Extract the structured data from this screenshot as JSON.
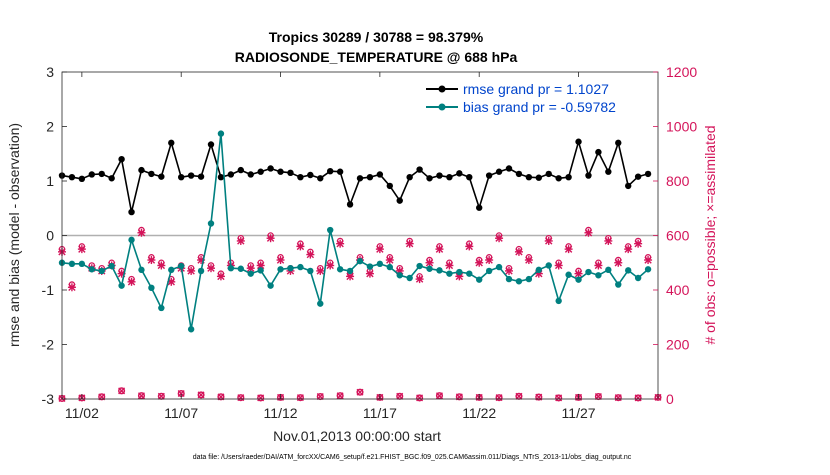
{
  "chart_data": {
    "type": "line",
    "title": "Tropics 30289 / 30788 = 98.379%",
    "subtitle": "RADIOSONDE_TEMPERATURE @ 688 hPa",
    "xlabel": "Nov.01,2013 00:00:00 start",
    "ylabel": "rmse and bias (model - observation)",
    "y2label": "# of obs: o=possible; ×=assimilated",
    "footer": "data file: /Users/raeder/DAI/ATM_forcXX/CAM6_setup/f.e21.FHIST_BGC.f09_025.CAM6assim.011/Diags_NTrS_2013-11/obs_diag_output.nc",
    "ylim": [
      -3,
      3
    ],
    "y2lim": [
      0,
      1200
    ],
    "xlim": [
      1,
      31
    ],
    "x_ticks": [
      2,
      7,
      12,
      17,
      22,
      27
    ],
    "x_tick_labels": [
      "11/02",
      "11/07",
      "11/12",
      "11/17",
      "11/22",
      "11/27"
    ],
    "y_ticks": [
      -3,
      -2,
      -1,
      0,
      1,
      2,
      3
    ],
    "y_tick_labels": [
      "-3",
      "-2",
      "-1",
      "0",
      "1",
      "2",
      "3"
    ],
    "y2_ticks": [
      0,
      200,
      400,
      600,
      800,
      1000,
      1200
    ],
    "y2_tick_labels": [
      "0",
      "200",
      "400",
      "600",
      "800",
      "1000",
      "1200"
    ],
    "legend_position": "top-right",
    "colors": {
      "rmse": "#000000",
      "bias": "#008080",
      "obs": "#d4145a",
      "legend_text": "#0044cc",
      "zero_line": "#b0b0b0"
    },
    "x": [
      1.0,
      1.5,
      2.0,
      2.5,
      3.0,
      3.5,
      4.0,
      4.5,
      5.0,
      5.5,
      6.0,
      6.5,
      7.0,
      7.5,
      8.0,
      8.5,
      9.0,
      9.5,
      10.0,
      10.5,
      11.0,
      11.5,
      12.0,
      12.5,
      13.0,
      13.5,
      14.0,
      14.5,
      15.0,
      15.5,
      16.0,
      16.5,
      17.0,
      17.5,
      18.0,
      18.5,
      19.0,
      19.5,
      20.0,
      20.5,
      21.0,
      21.5,
      22.0,
      22.5,
      23.0,
      23.5,
      24.0,
      24.5,
      25.0,
      25.5,
      26.0,
      26.5,
      27.0,
      27.5,
      28.0,
      28.5,
      29.0,
      29.5,
      30.0,
      30.5
    ],
    "series": [
      {
        "name": "rmse grand pr = 1.1027",
        "legend_label": "rmse grand pr = 1.1027",
        "values": [
          1.1,
          1.07,
          1.04,
          1.12,
          1.13,
          1.05,
          1.4,
          0.43,
          1.2,
          1.13,
          1.08,
          1.7,
          1.07,
          1.1,
          1.08,
          1.67,
          1.07,
          1.12,
          1.2,
          1.12,
          1.17,
          1.23,
          1.17,
          1.15,
          1.07,
          1.11,
          1.05,
          1.18,
          1.17,
          0.57,
          1.05,
          1.07,
          1.12,
          0.91,
          0.64,
          1.07,
          1.21,
          1.05,
          1.1,
          1.07,
          1.14,
          1.07,
          0.51,
          1.1,
          1.17,
          1.23,
          1.13,
          1.07,
          1.06,
          1.13,
          1.05,
          1.07,
          1.72,
          1.1,
          1.53,
          1.17,
          1.7,
          0.91,
          1.08,
          1.13
        ]
      },
      {
        "name": "bias grand pr = -0.59782",
        "legend_label": "bias grand pr = -0.59782",
        "values": [
          -0.5,
          -0.52,
          -0.52,
          -0.62,
          -0.65,
          -0.56,
          -0.92,
          -0.08,
          -0.63,
          -0.96,
          -1.33,
          -0.63,
          -0.56,
          -1.72,
          -0.65,
          0.22,
          1.87,
          -0.6,
          -0.61,
          -0.7,
          -0.64,
          -0.92,
          -0.62,
          -0.6,
          -0.58,
          -0.65,
          -1.25,
          0.1,
          -0.62,
          -0.65,
          -0.47,
          -0.57,
          -0.52,
          -0.58,
          -0.73,
          -0.78,
          -0.56,
          -0.61,
          -0.64,
          -0.7,
          -0.67,
          -0.7,
          -0.81,
          -0.65,
          -0.58,
          -0.8,
          -0.84,
          -0.8,
          -0.63,
          -0.55,
          -1.2,
          -0.72,
          -0.81,
          -0.67,
          -0.73,
          -0.63,
          -0.9,
          -0.64,
          -0.78,
          -0.62
        ]
      }
    ],
    "obs_possible": [
      550,
      420,
      560,
      490,
      480,
      500,
      470,
      440,
      620,
      520,
      500,
      440,
      490,
      480,
      520,
      490,
      460,
      500,
      590,
      490,
      500,
      600,
      520,
      480,
      570,
      540,
      480,
      500,
      580,
      460,
      520,
      470,
      560,
      520,
      480,
      580,
      450,
      510,
      560,
      500,
      460,
      570,
      510,
      520,
      600,
      480,
      550,
      520,
      470,
      590,
      500,
      560,
      470,
      620,
      500,
      590,
      510,
      560,
      580,
      520
    ],
    "obs_assimilated": [
      540,
      410,
      550,
      480,
      470,
      490,
      460,
      430,
      610,
      510,
      490,
      430,
      480,
      470,
      510,
      480,
      450,
      490,
      580,
      480,
      490,
      590,
      510,
      470,
      560,
      530,
      470,
      490,
      570,
      450,
      510,
      460,
      550,
      510,
      470,
      570,
      440,
      500,
      550,
      490,
      450,
      560,
      500,
      510,
      590,
      470,
      540,
      510,
      460,
      580,
      490,
      550,
      460,
      610,
      490,
      580,
      500,
      550,
      570,
      510
    ],
    "obs_rejected_x": [
      1.0,
      2.0,
      3.0,
      4.0,
      5.0,
      6.0,
      7.0,
      8.0,
      9.0,
      10.0,
      11.0,
      12.0,
      13.0,
      14.0,
      15.0,
      16.0,
      17.0,
      18.0,
      19.0,
      20.0,
      21.0,
      22.0,
      23.0,
      24.0,
      25.0,
      26.0,
      27.0,
      28.0,
      29.0,
      30.0,
      31.0
    ],
    "obs_rejected": [
      2,
      4,
      8,
      30,
      12,
      10,
      20,
      15,
      8,
      5,
      4,
      6,
      5,
      9,
      12,
      25,
      6,
      10,
      4,
      12,
      8,
      6,
      5,
      10,
      7,
      4,
      6,
      9,
      5,
      4,
      6
    ]
  }
}
